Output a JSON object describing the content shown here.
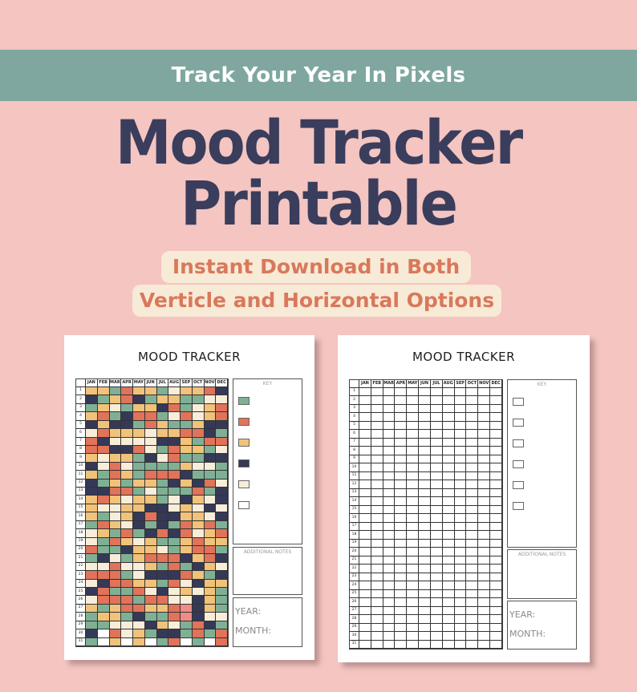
{
  "banner": {
    "text": "Track Your Year In Pixels"
  },
  "title": {
    "line1": "Mood Tracker",
    "line2": "Printable"
  },
  "subtitle": {
    "line1": "Instant Download in Both",
    "line2": "Verticle and Horizontal Options"
  },
  "colors": {
    "background": "#f4c5c1",
    "banner": "#7fa79f",
    "title": "#3a3d5c",
    "pill_bg": "#f7ead6",
    "pill_text": "#d9785b",
    "mood_green": "#7fb095",
    "mood_red": "#e07359",
    "mood_yellow": "#f1c27a",
    "mood_navy": "#353957",
    "mood_cream": "#f7edd9",
    "mood_white": "#ffffff",
    "mood_pink": "#f08c86"
  },
  "tracker": {
    "title": "MOOD TRACKER",
    "months": [
      "JAN",
      "FEB",
      "MAR",
      "APR",
      "MAY",
      "JUN",
      "JUL",
      "AUG",
      "SEP",
      "OCT",
      "NOV",
      "DEC"
    ],
    "days": [
      "1",
      "2",
      "3",
      "4",
      "5",
      "6",
      "7",
      "8",
      "9",
      "10",
      "11",
      "12",
      "13",
      "14",
      "15",
      "16",
      "17",
      "18",
      "19",
      "20",
      "21",
      "22",
      "23",
      "24",
      "25",
      "26",
      "27",
      "28",
      "29",
      "30",
      "31"
    ],
    "key_label": "KEY",
    "notes_label": "ADDITIONAL NOTES",
    "year_label": "YEAR:",
    "month_label": "MONTH:",
    "key_colors": [
      "#7fb095",
      "#e07359",
      "#f1c27a",
      "#353957",
      "#f7edd9",
      "#ffffff"
    ]
  }
}
